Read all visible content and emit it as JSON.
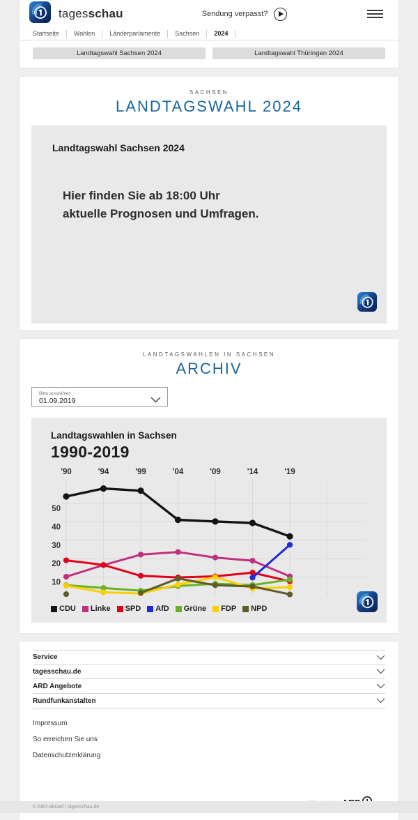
{
  "header": {
    "brand": {
      "name_regular": "tages",
      "name_bold": "schau"
    },
    "sendung_verpasst": "Sendung verpasst?",
    "breadcrumb": [
      "Startseite",
      "Wahlen",
      "Länderparlamente",
      "Sachsen",
      "2024"
    ],
    "tabs": [
      {
        "label": "Landtagswahl Sachsen 2024"
      },
      {
        "label": "Landtagswahl Thüringen 2024"
      }
    ]
  },
  "section_election": {
    "kicker": "SACHSEN",
    "title": "LANDTAGSWAHL 2024",
    "box": {
      "heading": "Landtagswahl Sachsen 2024",
      "lines": [
        "Hier finden Sie ab 18:00 Uhr",
        "aktuelle Prognosen und Umfragen."
      ]
    }
  },
  "section_archive": {
    "kicker": "LANDTAGSWAHLEN IN SACHSEN",
    "title": "ARCHIV",
    "dropdown": {
      "label": "Bitte auswählen",
      "value": "01.09.2019"
    }
  },
  "chart_data": {
    "type": "line",
    "title": "Landtagswahlen in Sachsen",
    "subtitle": "1990-2019",
    "x": [
      "'90",
      "'94",
      "'99",
      "'04",
      "'09",
      "'14",
      "'19"
    ],
    "ylabel": "",
    "xlabel": "",
    "ylim": [
      0,
      62
    ],
    "yticks": [
      10,
      20,
      30,
      40,
      50
    ],
    "grid": true,
    "legend_position": "bottom",
    "series": [
      {
        "name": "CDU",
        "color": "#141414",
        "values": [
          53.8,
          58.1,
          56.9,
          41.1,
          40.2,
          39.4,
          32.1
        ]
      },
      {
        "name": "Linke",
        "color": "#bf3180",
        "values": [
          10.2,
          16.5,
          22.2,
          23.6,
          20.6,
          18.9,
          10.4
        ]
      },
      {
        "name": "SPD",
        "color": "#e10019",
        "values": [
          19.1,
          16.6,
          10.7,
          9.8,
          10.4,
          12.4,
          7.7
        ]
      },
      {
        "name": "AfD",
        "color": "#1e2cd5",
        "values": [
          null,
          null,
          null,
          null,
          null,
          9.7,
          27.5
        ]
      },
      {
        "name": "Grüne",
        "color": "#6ab222",
        "values": [
          5.6,
          4.1,
          2.6,
          5.1,
          6.4,
          5.7,
          8.6
        ]
      },
      {
        "name": "FDP",
        "color": "#fccf00",
        "values": [
          5.3,
          1.7,
          1.1,
          5.9,
          10.0,
          3.8,
          4.5
        ]
      },
      {
        "name": "NPD",
        "color": "#5f5b2a",
        "values": [
          0.7,
          null,
          1.4,
          9.2,
          5.6,
          4.9,
          0.6
        ]
      }
    ]
  },
  "footer": {
    "accordions": [
      "Service",
      "tagesschau.de",
      "ARD Angebote",
      "Rundfunkanstalten"
    ],
    "links": [
      "Impressum",
      "So erreichen Sie uns",
      "Datenschutzerklärung"
    ],
    "ard_claim": "Wir sind deins.",
    "ard_brand": "ARD",
    "copyright": "© ARD-aktuell / tagesschau.de"
  }
}
